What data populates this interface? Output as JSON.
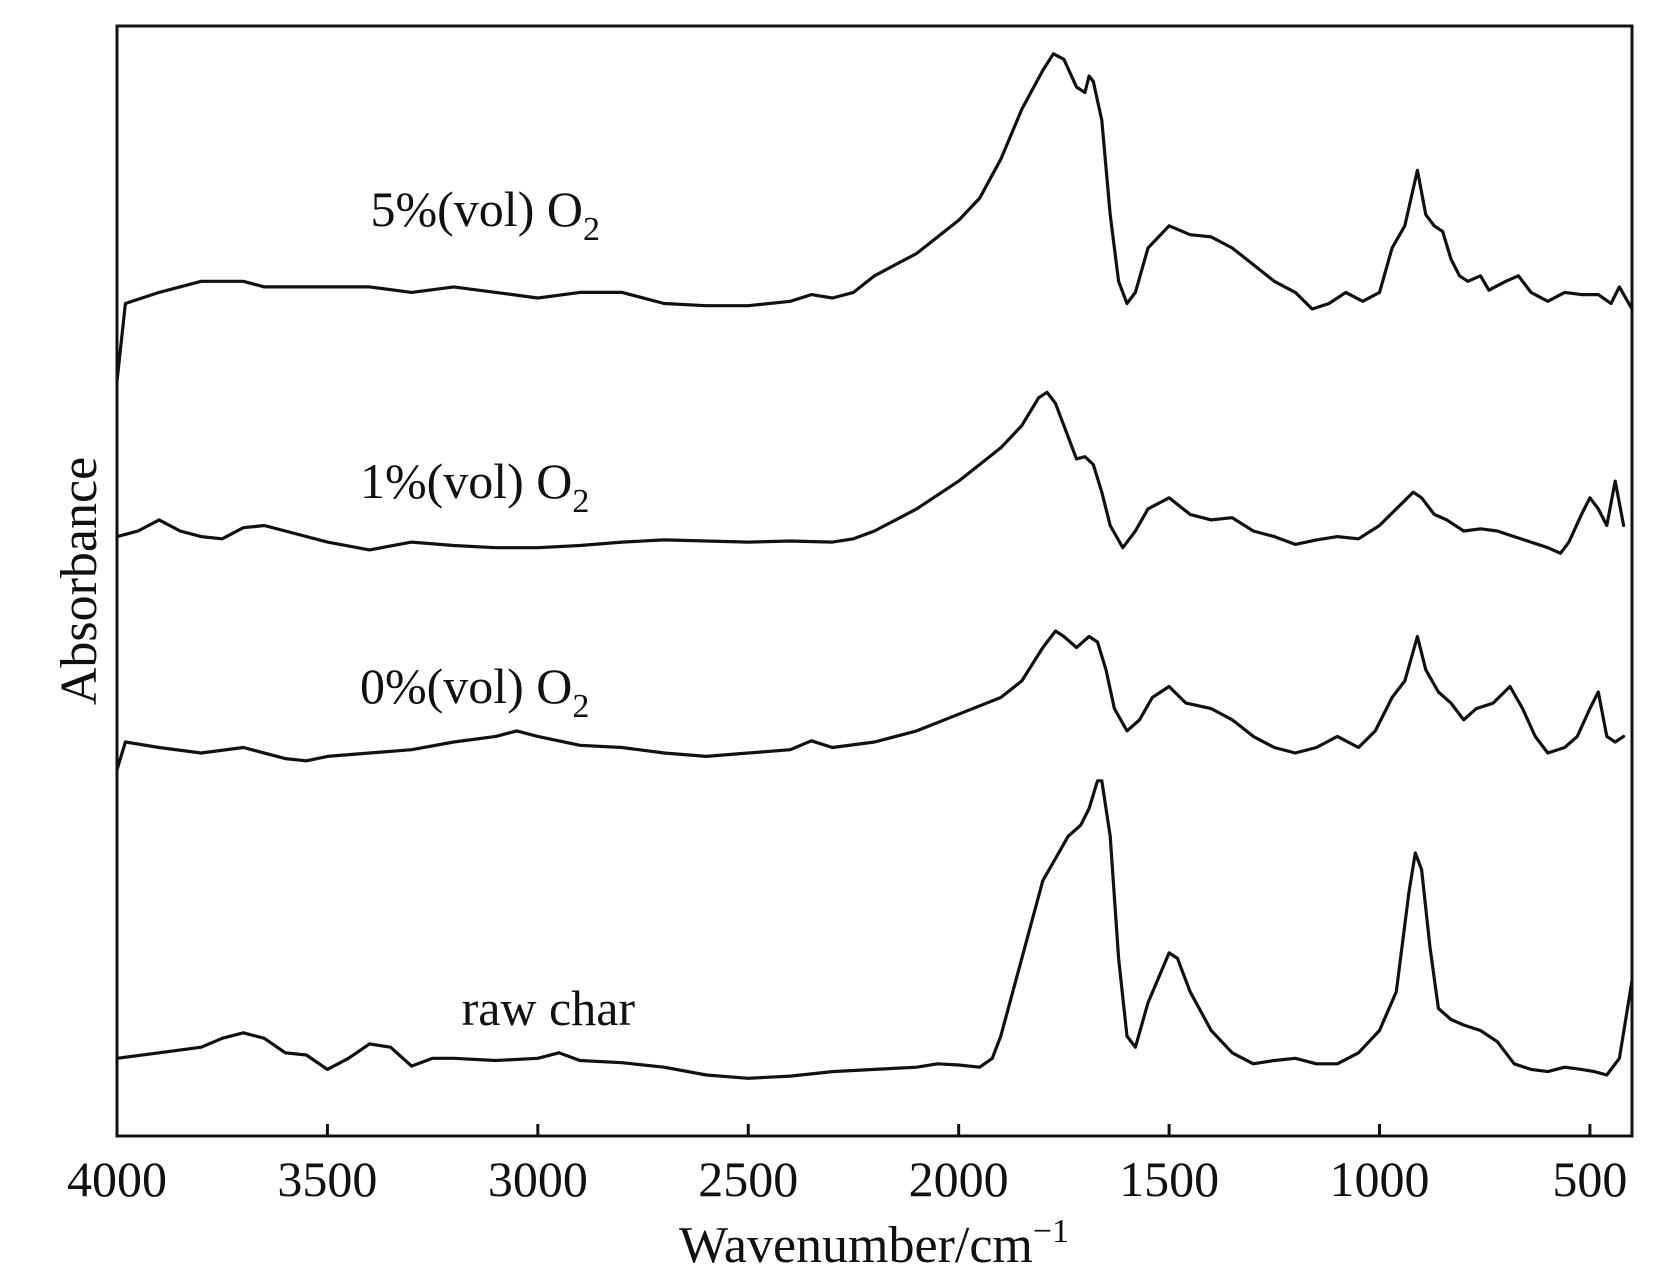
{
  "chart_data": {
    "type": "line",
    "xlabel": "Wavenumber/cm",
    "xlabel_sup": "−1",
    "ylabel": "Absorbance",
    "xlim": [
      4000,
      400
    ],
    "x_reversed": true,
    "ylim": [
      0,
      1
    ],
    "y_ticks_shown": false,
    "grid": false,
    "legend": "none",
    "x_ticks": [
      4000,
      3500,
      3000,
      2500,
      2000,
      1500,
      1000,
      500
    ],
    "line_color": "#111111",
    "series": [
      {
        "name": "5%(vol) O",
        "name_sub": "2",
        "label_at": [
          3125,
          0.82
        ],
        "points": [
          [
            4000,
            0.68
          ],
          [
            3980,
            0.75
          ],
          [
            3900,
            0.76
          ],
          [
            3800,
            0.77
          ],
          [
            3700,
            0.77
          ],
          [
            3650,
            0.765
          ],
          [
            3600,
            0.765
          ],
          [
            3500,
            0.765
          ],
          [
            3400,
            0.765
          ],
          [
            3300,
            0.76
          ],
          [
            3200,
            0.765
          ],
          [
            3100,
            0.76
          ],
          [
            3000,
            0.755
          ],
          [
            2900,
            0.76
          ],
          [
            2800,
            0.76
          ],
          [
            2700,
            0.75
          ],
          [
            2600,
            0.748
          ],
          [
            2500,
            0.748
          ],
          [
            2400,
            0.752
          ],
          [
            2350,
            0.758
          ],
          [
            2300,
            0.755
          ],
          [
            2250,
            0.76
          ],
          [
            2200,
            0.775
          ],
          [
            2100,
            0.795
          ],
          [
            2000,
            0.825
          ],
          [
            1950,
            0.845
          ],
          [
            1900,
            0.88
          ],
          [
            1850,
            0.925
          ],
          [
            1800,
            0.96
          ],
          [
            1775,
            0.975
          ],
          [
            1750,
            0.97
          ],
          [
            1720,
            0.945
          ],
          [
            1700,
            0.94
          ],
          [
            1690,
            0.955
          ],
          [
            1680,
            0.95
          ],
          [
            1660,
            0.915
          ],
          [
            1640,
            0.83
          ],
          [
            1620,
            0.77
          ],
          [
            1600,
            0.75
          ],
          [
            1580,
            0.76
          ],
          [
            1550,
            0.8
          ],
          [
            1500,
            0.82
          ],
          [
            1450,
            0.812
          ],
          [
            1400,
            0.81
          ],
          [
            1350,
            0.8
          ],
          [
            1300,
            0.785
          ],
          [
            1250,
            0.77
          ],
          [
            1200,
            0.76
          ],
          [
            1160,
            0.745
          ],
          [
            1120,
            0.75
          ],
          [
            1080,
            0.76
          ],
          [
            1040,
            0.752
          ],
          [
            1000,
            0.76
          ],
          [
            970,
            0.8
          ],
          [
            940,
            0.82
          ],
          [
            910,
            0.87
          ],
          [
            890,
            0.83
          ],
          [
            870,
            0.82
          ],
          [
            850,
            0.815
          ],
          [
            830,
            0.79
          ],
          [
            810,
            0.775
          ],
          [
            790,
            0.77
          ],
          [
            760,
            0.775
          ],
          [
            740,
            0.762
          ],
          [
            700,
            0.77
          ],
          [
            670,
            0.775
          ],
          [
            640,
            0.76
          ],
          [
            600,
            0.752
          ],
          [
            560,
            0.76
          ],
          [
            520,
            0.758
          ],
          [
            480,
            0.758
          ],
          [
            450,
            0.75
          ],
          [
            430,
            0.765
          ],
          [
            400,
            0.745
          ]
        ]
      },
      {
        "name": "1%(vol) O",
        "name_sub": "2",
        "label_at": [
          3150,
          0.575
        ],
        "points": [
          [
            4000,
            0.54
          ],
          [
            3950,
            0.545
          ],
          [
            3900,
            0.555
          ],
          [
            3850,
            0.545
          ],
          [
            3800,
            0.54
          ],
          [
            3750,
            0.538
          ],
          [
            3700,
            0.548
          ],
          [
            3650,
            0.55
          ],
          [
            3600,
            0.545
          ],
          [
            3500,
            0.535
          ],
          [
            3400,
            0.528
          ],
          [
            3300,
            0.535
          ],
          [
            3200,
            0.532
          ],
          [
            3100,
            0.53
          ],
          [
            3000,
            0.53
          ],
          [
            2900,
            0.532
          ],
          [
            2800,
            0.535
          ],
          [
            2700,
            0.537
          ],
          [
            2600,
            0.536
          ],
          [
            2500,
            0.535
          ],
          [
            2400,
            0.536
          ],
          [
            2300,
            0.535
          ],
          [
            2250,
            0.538
          ],
          [
            2200,
            0.545
          ],
          [
            2100,
            0.565
          ],
          [
            2000,
            0.59
          ],
          [
            1900,
            0.62
          ],
          [
            1850,
            0.64
          ],
          [
            1810,
            0.665
          ],
          [
            1790,
            0.67
          ],
          [
            1770,
            0.66
          ],
          [
            1740,
            0.63
          ],
          [
            1720,
            0.61
          ],
          [
            1700,
            0.612
          ],
          [
            1680,
            0.605
          ],
          [
            1660,
            0.58
          ],
          [
            1640,
            0.55
          ],
          [
            1610,
            0.53
          ],
          [
            1580,
            0.545
          ],
          [
            1550,
            0.565
          ],
          [
            1500,
            0.575
          ],
          [
            1450,
            0.56
          ],
          [
            1400,
            0.555
          ],
          [
            1350,
            0.557
          ],
          [
            1300,
            0.545
          ],
          [
            1250,
            0.54
          ],
          [
            1200,
            0.533
          ],
          [
            1150,
            0.537
          ],
          [
            1100,
            0.54
          ],
          [
            1050,
            0.538
          ],
          [
            1000,
            0.55
          ],
          [
            960,
            0.565
          ],
          [
            920,
            0.58
          ],
          [
            900,
            0.575
          ],
          [
            870,
            0.56
          ],
          [
            840,
            0.555
          ],
          [
            800,
            0.545
          ],
          [
            760,
            0.547
          ],
          [
            720,
            0.545
          ],
          [
            680,
            0.54
          ],
          [
            640,
            0.535
          ],
          [
            600,
            0.53
          ],
          [
            570,
            0.525
          ],
          [
            550,
            0.535
          ],
          [
            520,
            0.56
          ],
          [
            500,
            0.575
          ],
          [
            480,
            0.565
          ],
          [
            460,
            0.55
          ],
          [
            440,
            0.59
          ],
          [
            420,
            0.55
          ]
        ]
      },
      {
        "name": "0%(vol) O",
        "name_sub": "2",
        "label_at": [
          3150,
          0.39
        ],
        "points": [
          [
            4000,
            0.33
          ],
          [
            3980,
            0.355
          ],
          [
            3900,
            0.35
          ],
          [
            3800,
            0.345
          ],
          [
            3700,
            0.35
          ],
          [
            3600,
            0.34
          ],
          [
            3550,
            0.338
          ],
          [
            3500,
            0.342
          ],
          [
            3400,
            0.345
          ],
          [
            3300,
            0.348
          ],
          [
            3200,
            0.355
          ],
          [
            3100,
            0.36
          ],
          [
            3050,
            0.365
          ],
          [
            3000,
            0.36
          ],
          [
            2900,
            0.352
          ],
          [
            2800,
            0.35
          ],
          [
            2700,
            0.345
          ],
          [
            2600,
            0.342
          ],
          [
            2500,
            0.345
          ],
          [
            2400,
            0.348
          ],
          [
            2350,
            0.356
          ],
          [
            2300,
            0.35
          ],
          [
            2200,
            0.355
          ],
          [
            2100,
            0.365
          ],
          [
            2000,
            0.38
          ],
          [
            1900,
            0.395
          ],
          [
            1850,
            0.41
          ],
          [
            1800,
            0.44
          ],
          [
            1770,
            0.455
          ],
          [
            1750,
            0.45
          ],
          [
            1720,
            0.44
          ],
          [
            1690,
            0.45
          ],
          [
            1670,
            0.445
          ],
          [
            1650,
            0.42
          ],
          [
            1630,
            0.385
          ],
          [
            1600,
            0.365
          ],
          [
            1570,
            0.375
          ],
          [
            1540,
            0.395
          ],
          [
            1500,
            0.405
          ],
          [
            1460,
            0.39
          ],
          [
            1400,
            0.385
          ],
          [
            1350,
            0.375
          ],
          [
            1300,
            0.36
          ],
          [
            1250,
            0.35
          ],
          [
            1200,
            0.345
          ],
          [
            1150,
            0.35
          ],
          [
            1100,
            0.36
          ],
          [
            1050,
            0.35
          ],
          [
            1010,
            0.365
          ],
          [
            970,
            0.395
          ],
          [
            940,
            0.41
          ],
          [
            910,
            0.45
          ],
          [
            890,
            0.42
          ],
          [
            860,
            0.4
          ],
          [
            830,
            0.39
          ],
          [
            800,
            0.375
          ],
          [
            770,
            0.385
          ],
          [
            730,
            0.39
          ],
          [
            690,
            0.405
          ],
          [
            660,
            0.385
          ],
          [
            630,
            0.36
          ],
          [
            600,
            0.345
          ],
          [
            560,
            0.35
          ],
          [
            530,
            0.36
          ],
          [
            500,
            0.385
          ],
          [
            480,
            0.4
          ],
          [
            460,
            0.36
          ],
          [
            440,
            0.355
          ],
          [
            420,
            0.36
          ]
        ]
      },
      {
        "name": "raw char",
        "label_at": [
          2975,
          0.1
        ],
        "points": [
          [
            4000,
            0.07
          ],
          [
            3900,
            0.075
          ],
          [
            3800,
            0.08
          ],
          [
            3750,
            0.088
          ],
          [
            3700,
            0.093
          ],
          [
            3650,
            0.088
          ],
          [
            3600,
            0.075
          ],
          [
            3550,
            0.073
          ],
          [
            3500,
            0.06
          ],
          [
            3450,
            0.07
          ],
          [
            3400,
            0.083
          ],
          [
            3350,
            0.08
          ],
          [
            3300,
            0.063
          ],
          [
            3250,
            0.07
          ],
          [
            3200,
            0.07
          ],
          [
            3100,
            0.068
          ],
          [
            3000,
            0.07
          ],
          [
            2950,
            0.075
          ],
          [
            2900,
            0.068
          ],
          [
            2800,
            0.066
          ],
          [
            2700,
            0.062
          ],
          [
            2600,
            0.055
          ],
          [
            2500,
            0.052
          ],
          [
            2400,
            0.054
          ],
          [
            2300,
            0.058
          ],
          [
            2200,
            0.06
          ],
          [
            2100,
            0.062
          ],
          [
            2050,
            0.065
          ],
          [
            2000,
            0.064
          ],
          [
            1950,
            0.062
          ],
          [
            1920,
            0.07
          ],
          [
            1900,
            0.09
          ],
          [
            1850,
            0.16
          ],
          [
            1800,
            0.23
          ],
          [
            1770,
            0.25
          ],
          [
            1740,
            0.27
          ],
          [
            1710,
            0.28
          ],
          [
            1690,
            0.295
          ],
          [
            1670,
            0.32
          ],
          [
            1660,
            0.32
          ],
          [
            1640,
            0.27
          ],
          [
            1620,
            0.16
          ],
          [
            1600,
            0.09
          ],
          [
            1580,
            0.08
          ],
          [
            1550,
            0.12
          ],
          [
            1500,
            0.165
          ],
          [
            1480,
            0.16
          ],
          [
            1450,
            0.13
          ],
          [
            1400,
            0.095
          ],
          [
            1350,
            0.075
          ],
          [
            1300,
            0.065
          ],
          [
            1250,
            0.068
          ],
          [
            1200,
            0.07
          ],
          [
            1150,
            0.065
          ],
          [
            1100,
            0.065
          ],
          [
            1050,
            0.075
          ],
          [
            1000,
            0.095
          ],
          [
            960,
            0.13
          ],
          [
            930,
            0.22
          ],
          [
            915,
            0.255
          ],
          [
            900,
            0.24
          ],
          [
            880,
            0.17
          ],
          [
            860,
            0.115
          ],
          [
            830,
            0.105
          ],
          [
            800,
            0.1
          ],
          [
            760,
            0.095
          ],
          [
            720,
            0.085
          ],
          [
            680,
            0.065
          ],
          [
            640,
            0.06
          ],
          [
            600,
            0.058
          ],
          [
            560,
            0.062
          ],
          [
            520,
            0.06
          ],
          [
            490,
            0.058
          ],
          [
            460,
            0.055
          ],
          [
            430,
            0.07
          ],
          [
            400,
            0.14
          ]
        ]
      }
    ]
  }
}
